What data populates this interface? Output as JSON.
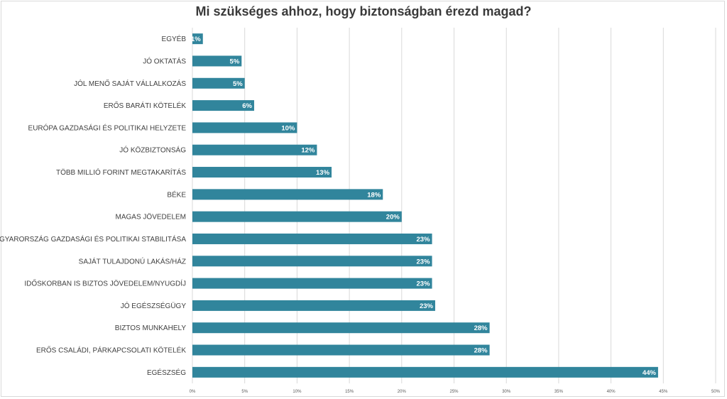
{
  "chart_data": {
    "type": "bar",
    "orientation": "horizontal",
    "title": "Mi szükséges ahhoz, hogy biztonságban érezd magad?",
    "categories": [
      "EGYÉB",
      "JÓ OKTATÁS",
      "JÓL MENŐ SAJÁT VÁLLALKOZÁS",
      "ERŐS BARÁTI KÖTELÉK",
      "EURÓPA GAZDASÁGI ÉS POLITIKAI HELYZETE",
      "JÓ KÖZBIZTONSÁG",
      "TÖBB MILLIÓ FORINT MEGTAKARÍTÁS",
      "BÉKE",
      "MAGAS JÖVEDELEM",
      "MAGYARORSZÁG GAZDASÁGI ÉS POLITIKAI STABILITÁSA",
      "SAJÁT TULAJDONÚ LAKÁS/HÁZ",
      "IDŐSKORBAN IS BIZTOS JÖVEDELEM/NYUGDÍJ",
      "JÓ EGÉSZSÉGÜGY",
      "BIZTOS MUNKAHELY",
      "ERŐS CSALÁDI, PÁRKAPCSOLATI KÖTELÉK",
      "EGÉSZSÉG"
    ],
    "values": [
      1,
      4.7,
      5,
      5.9,
      10,
      11.9,
      13.3,
      18.2,
      20,
      22.9,
      22.9,
      22.9,
      23.2,
      28.4,
      28.4,
      44.5
    ],
    "value_labels": [
      "1%",
      "5%",
      "5%",
      "6%",
      "10%",
      "12%",
      "13%",
      "18%",
      "20%",
      "23%",
      "23%",
      "23%",
      "23%",
      "28%",
      "28%",
      "44%"
    ],
    "xlim": [
      0,
      50
    ],
    "x_ticks": [
      "0%",
      "5%",
      "10%",
      "15%",
      "20%",
      "25%",
      "30%",
      "35%",
      "40%",
      "45%",
      "50%"
    ],
    "grid": true,
    "legend": "none",
    "bar_color": "#31859c",
    "grid_color": "#d9d9d9"
  }
}
